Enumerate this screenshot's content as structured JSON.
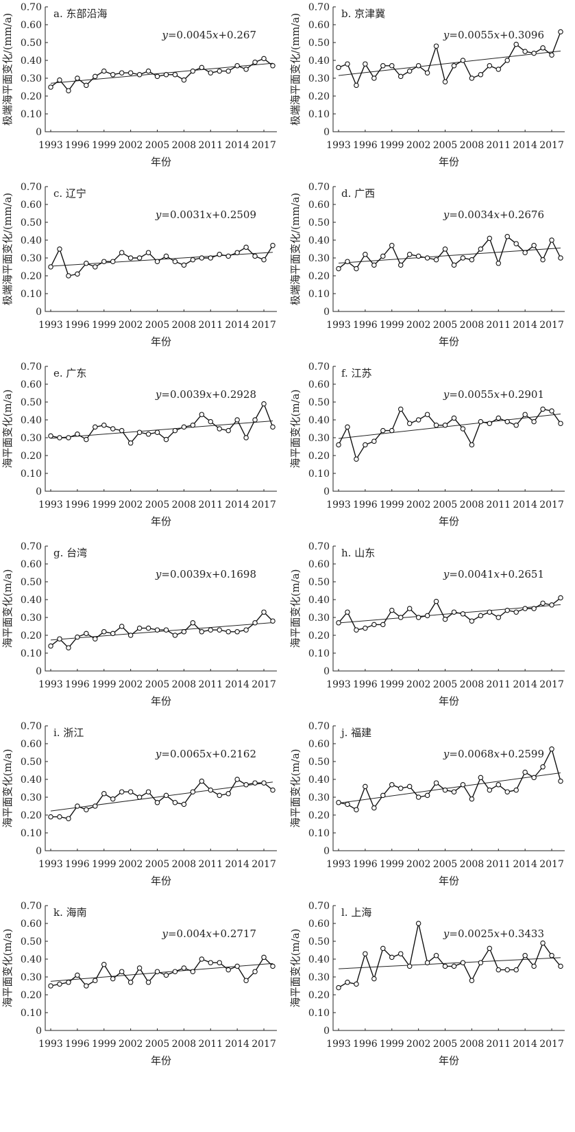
{
  "layout_note": "",
  "chart_data": [
    {
      "type": "line",
      "title": "a. 东部沿海",
      "xlabel": "年份",
      "ylabel": "极端海平面变化/(mm/a)",
      "equation": {
        "pre": "y",
        "mid": "=0.0045",
        "x": "x",
        "post": "+0.267"
      },
      "xticks": [
        "1993",
        "1996",
        "1999",
        "2002",
        "2005",
        "2008",
        "2011",
        "2014",
        "2017"
      ],
      "yticks": [
        "0",
        "0.10",
        "0.20",
        "0.30",
        "0.40",
        "0.50",
        "0.60",
        "0.70"
      ],
      "ylim": [
        0,
        0.7
      ],
      "grid": false,
      "x": [
        1993,
        1994,
        1995,
        1996,
        1997,
        1998,
        1999,
        2000,
        2001,
        2002,
        2003,
        2004,
        2005,
        2006,
        2007,
        2008,
        2009,
        2010,
        2011,
        2012,
        2013,
        2014,
        2015,
        2016,
        2017,
        2018
      ],
      "values": [
        0.25,
        0.29,
        0.23,
        0.3,
        0.26,
        0.31,
        0.34,
        0.32,
        0.33,
        0.33,
        0.32,
        0.34,
        0.31,
        0.32,
        0.32,
        0.29,
        0.34,
        0.36,
        0.33,
        0.34,
        0.34,
        0.37,
        0.35,
        0.39,
        0.41,
        0.37
      ],
      "trend": {
        "slope": 0.0045,
        "intercept": 0.267
      }
    },
    {
      "type": "line",
      "title": "b. 京津冀",
      "xlabel": "年份",
      "ylabel": "极端海平面变化/(mm/a)",
      "equation": {
        "pre": "y",
        "mid": "=0.0055",
        "x": "x",
        "post": "+0.3096"
      },
      "xticks": [
        "1993",
        "1996",
        "1999",
        "2002",
        "2005",
        "2008",
        "2011",
        "2014",
        "2017"
      ],
      "yticks": [
        "0",
        "0.10",
        "0.20",
        "0.30",
        "0.40",
        "0.50",
        "0.60",
        "0.70"
      ],
      "ylim": [
        0,
        0.7
      ],
      "grid": false,
      "x": [
        1993,
        1994,
        1995,
        1996,
        1997,
        1998,
        1999,
        2000,
        2001,
        2002,
        2003,
        2004,
        2005,
        2006,
        2007,
        2008,
        2009,
        2010,
        2011,
        2012,
        2013,
        2014,
        2015,
        2016,
        2017,
        2018
      ],
      "values": [
        0.36,
        0.38,
        0.26,
        0.38,
        0.3,
        0.37,
        0.37,
        0.31,
        0.34,
        0.37,
        0.33,
        0.48,
        0.28,
        0.37,
        0.4,
        0.3,
        0.32,
        0.37,
        0.35,
        0.4,
        0.49,
        0.45,
        0.44,
        0.47,
        0.43,
        0.56
      ],
      "trend": {
        "slope": 0.0055,
        "intercept": 0.3096
      }
    },
    {
      "type": "line",
      "title": "c. 辽宁",
      "xlabel": "年份",
      "ylabel": "极端海平面变化/(mm/a)",
      "equation": {
        "pre": "y",
        "mid": "=0.0031",
        "x": "x",
        "post": "+0.2509"
      },
      "xticks": [
        "1993",
        "1996",
        "1999",
        "2002",
        "2005",
        "2008",
        "2011",
        "2014",
        "2017"
      ],
      "yticks": [
        "0",
        "0.10",
        "0.20",
        "0.30",
        "0.40",
        "0.50",
        "0.60",
        "0.70"
      ],
      "ylim": [
        0,
        0.7
      ],
      "grid": false,
      "x": [
        1993,
        1994,
        1995,
        1996,
        1997,
        1998,
        1999,
        2000,
        2001,
        2002,
        2003,
        2004,
        2005,
        2006,
        2007,
        2008,
        2009,
        2010,
        2011,
        2012,
        2013,
        2014,
        2015,
        2016,
        2017,
        2018
      ],
      "values": [
        0.25,
        0.35,
        0.2,
        0.21,
        0.27,
        0.25,
        0.28,
        0.28,
        0.33,
        0.3,
        0.3,
        0.33,
        0.28,
        0.31,
        0.28,
        0.26,
        0.29,
        0.3,
        0.3,
        0.32,
        0.31,
        0.33,
        0.36,
        0.31,
        0.29,
        0.37
      ],
      "trend": {
        "slope": 0.0031,
        "intercept": 0.2509
      }
    },
    {
      "type": "line",
      "title": "d. 广西",
      "xlabel": "年份",
      "ylabel": "极端海平面变化/(mm/a)",
      "equation": {
        "pre": "y",
        "mid": "=0.0034",
        "x": "x",
        "post": "+0.2676"
      },
      "xticks": [
        "1993",
        "1996",
        "1999",
        "2002",
        "2005",
        "2008",
        "2011",
        "2014",
        "2017"
      ],
      "yticks": [
        "0",
        "0.10",
        "0.20",
        "0.30",
        "0.40",
        "0.50",
        "0.60",
        "0.70"
      ],
      "ylim": [
        0,
        0.7
      ],
      "grid": false,
      "x": [
        1993,
        1994,
        1995,
        1996,
        1997,
        1998,
        1999,
        2000,
        2001,
        2002,
        2003,
        2004,
        2005,
        2006,
        2007,
        2008,
        2009,
        2010,
        2011,
        2012,
        2013,
        2014,
        2015,
        2016,
        2017,
        2018
      ],
      "values": [
        0.24,
        0.28,
        0.24,
        0.32,
        0.26,
        0.31,
        0.37,
        0.26,
        0.32,
        0.31,
        0.3,
        0.29,
        0.35,
        0.26,
        0.3,
        0.29,
        0.35,
        0.41,
        0.27,
        0.42,
        0.38,
        0.33,
        0.37,
        0.29,
        0.4,
        0.3
      ],
      "trend": {
        "slope": 0.0034,
        "intercept": 0.2676
      }
    },
    {
      "type": "line",
      "title": "e. 广东",
      "xlabel": "年份",
      "ylabel": "海平面变化(m/a)",
      "equation": {
        "pre": "y",
        "mid": "=0.0039",
        "x": "x",
        "post": "+0.2928"
      },
      "xticks": [
        "1993",
        "1996",
        "1999",
        "2002",
        "2005",
        "2008",
        "2011",
        "2014",
        "2017"
      ],
      "yticks": [
        "0",
        "0.10",
        "0.20",
        "0.30",
        "0.40",
        "0.50",
        "0.60",
        "0.70"
      ],
      "ylim": [
        0,
        0.7
      ],
      "grid": false,
      "x": [
        1993,
        1994,
        1995,
        1996,
        1997,
        1998,
        1999,
        2000,
        2001,
        2002,
        2003,
        2004,
        2005,
        2006,
        2007,
        2008,
        2009,
        2010,
        2011,
        2012,
        2013,
        2014,
        2015,
        2016,
        2017,
        2018
      ],
      "values": [
        0.31,
        0.3,
        0.3,
        0.32,
        0.29,
        0.36,
        0.37,
        0.35,
        0.34,
        0.27,
        0.33,
        0.32,
        0.33,
        0.29,
        0.34,
        0.36,
        0.37,
        0.43,
        0.39,
        0.35,
        0.34,
        0.4,
        0.3,
        0.4,
        0.49,
        0.36
      ],
      "trend": {
        "slope": 0.0039,
        "intercept": 0.2928
      }
    },
    {
      "type": "line",
      "title": "f. 江苏",
      "xlabel": "年份",
      "ylabel": "海平面变化(m/a)",
      "equation": {
        "pre": "y",
        "mid": "=0.0055",
        "x": "x",
        "post": "+0.2901"
      },
      "xticks": [
        "1993",
        "1996",
        "1999",
        "2002",
        "2005",
        "2008",
        "2011",
        "2014",
        "2017"
      ],
      "yticks": [
        "0",
        "0.10",
        "0.20",
        "0.30",
        "0.40",
        "0.50",
        "0.60",
        "0.70"
      ],
      "ylim": [
        0,
        0.7
      ],
      "grid": false,
      "x": [
        1993,
        1994,
        1995,
        1996,
        1997,
        1998,
        1999,
        2000,
        2001,
        2002,
        2003,
        2004,
        2005,
        2006,
        2007,
        2008,
        2009,
        2010,
        2011,
        2012,
        2013,
        2014,
        2015,
        2016,
        2017,
        2018
      ],
      "values": [
        0.26,
        0.36,
        0.18,
        0.26,
        0.28,
        0.34,
        0.34,
        0.46,
        0.38,
        0.4,
        0.43,
        0.37,
        0.37,
        0.41,
        0.35,
        0.26,
        0.39,
        0.38,
        0.41,
        0.39,
        0.37,
        0.43,
        0.39,
        0.46,
        0.45,
        0.38
      ],
      "trend": {
        "slope": 0.0055,
        "intercept": 0.2901
      }
    },
    {
      "type": "line",
      "title": "g. 台湾",
      "xlabel": "年份",
      "ylabel": "海平面变化(m/a)",
      "equation": {
        "pre": "y",
        "mid": "=0.0039",
        "x": "x",
        "post": "+0.1698"
      },
      "xticks": [
        "1993",
        "1996",
        "1999",
        "2002",
        "2005",
        "2008",
        "2011",
        "2014",
        "2017"
      ],
      "yticks": [
        "0",
        "0.10",
        "0.20",
        "0.30",
        "0.40",
        "0.50",
        "0.60",
        "0.70"
      ],
      "ylim": [
        0,
        0.7
      ],
      "grid": false,
      "x": [
        1993,
        1994,
        1995,
        1996,
        1997,
        1998,
        1999,
        2000,
        2001,
        2002,
        2003,
        2004,
        2005,
        2006,
        2007,
        2008,
        2009,
        2010,
        2011,
        2012,
        2013,
        2014,
        2015,
        2016,
        2017,
        2018
      ],
      "values": [
        0.14,
        0.18,
        0.13,
        0.19,
        0.21,
        0.18,
        0.22,
        0.21,
        0.25,
        0.2,
        0.24,
        0.24,
        0.23,
        0.23,
        0.2,
        0.22,
        0.27,
        0.22,
        0.23,
        0.23,
        0.22,
        0.22,
        0.23,
        0.27,
        0.33,
        0.28
      ],
      "trend": {
        "slope": 0.0039,
        "intercept": 0.1698
      }
    },
    {
      "type": "line",
      "title": "h. 山东",
      "xlabel": "年份",
      "ylabel": "海平面变化(m/a)",
      "equation": {
        "pre": "y",
        "mid": "=0.0041",
        "x": "x",
        "post": "+0.2651"
      },
      "xticks": [
        "1993",
        "1996",
        "1999",
        "2002",
        "2005",
        "2008",
        "2011",
        "2014",
        "2017"
      ],
      "yticks": [
        "0",
        "0.10",
        "0.20",
        "0.30",
        "0.40",
        "0.50",
        "0.60",
        "0.70"
      ],
      "ylim": [
        0,
        0.7
      ],
      "grid": false,
      "x": [
        1993,
        1994,
        1995,
        1996,
        1997,
        1998,
        1999,
        2000,
        2001,
        2002,
        2003,
        2004,
        2005,
        2006,
        2007,
        2008,
        2009,
        2010,
        2011,
        2012,
        2013,
        2014,
        2015,
        2016,
        2017,
        2018
      ],
      "values": [
        0.27,
        0.33,
        0.23,
        0.24,
        0.26,
        0.26,
        0.34,
        0.3,
        0.35,
        0.3,
        0.31,
        0.39,
        0.29,
        0.33,
        0.32,
        0.28,
        0.31,
        0.33,
        0.3,
        0.34,
        0.33,
        0.35,
        0.35,
        0.38,
        0.37,
        0.41
      ],
      "trend": {
        "slope": 0.0041,
        "intercept": 0.2651
      }
    },
    {
      "type": "line",
      "title": "i. 浙江",
      "xlabel": "年份",
      "ylabel": "海平面变化(m/a)",
      "equation": {
        "pre": "y",
        "mid": "=0.0065",
        "x": "x",
        "post": "+0.2162"
      },
      "xticks": [
        "1993",
        "1996",
        "1999",
        "2002",
        "2005",
        "2008",
        "2011",
        "2014",
        "2017"
      ],
      "yticks": [
        "0",
        "0.10",
        "0.20",
        "0.30",
        "0.40",
        "0.50",
        "0.60",
        "0.70"
      ],
      "ylim": [
        0,
        0.7
      ],
      "grid": false,
      "x": [
        1993,
        1994,
        1995,
        1996,
        1997,
        1998,
        1999,
        2000,
        2001,
        2002,
        2003,
        2004,
        2005,
        2006,
        2007,
        2008,
        2009,
        2010,
        2011,
        2012,
        2013,
        2014,
        2015,
        2016,
        2017,
        2018
      ],
      "values": [
        0.19,
        0.19,
        0.18,
        0.25,
        0.23,
        0.25,
        0.32,
        0.29,
        0.33,
        0.33,
        0.3,
        0.33,
        0.27,
        0.31,
        0.27,
        0.26,
        0.33,
        0.39,
        0.34,
        0.31,
        0.32,
        0.4,
        0.37,
        0.38,
        0.38,
        0.34
      ],
      "trend": {
        "slope": 0.0065,
        "intercept": 0.2162
      }
    },
    {
      "type": "line",
      "title": "j. 福建",
      "xlabel": "年份",
      "ylabel": "海平面变化(m/a)",
      "equation": {
        "pre": "y",
        "mid": "=0.0068",
        "x": "x",
        "post": "+0.2599"
      },
      "xticks": [
        "1993",
        "1996",
        "1999",
        "2002",
        "2005",
        "2008",
        "2011",
        "2014",
        "2017"
      ],
      "yticks": [
        "0",
        "0.10",
        "0.20",
        "0.30",
        "0.40",
        "0.50",
        "0.60",
        "0.70"
      ],
      "ylim": [
        0,
        0.7
      ],
      "grid": false,
      "x": [
        1993,
        1994,
        1995,
        1996,
        1997,
        1998,
        1999,
        2000,
        2001,
        2002,
        2003,
        2004,
        2005,
        2006,
        2007,
        2008,
        2009,
        2010,
        2011,
        2012,
        2013,
        2014,
        2015,
        2016,
        2017,
        2018
      ],
      "values": [
        0.27,
        0.26,
        0.23,
        0.36,
        0.24,
        0.31,
        0.37,
        0.35,
        0.36,
        0.3,
        0.31,
        0.38,
        0.34,
        0.33,
        0.37,
        0.29,
        0.41,
        0.34,
        0.37,
        0.33,
        0.34,
        0.44,
        0.41,
        0.47,
        0.57,
        0.39
      ],
      "trend": {
        "slope": 0.0068,
        "intercept": 0.2599
      }
    },
    {
      "type": "line",
      "title": "k. 海南",
      "xlabel": "年份",
      "ylabel": "海平面变化(m/a)",
      "equation": {
        "pre": "y",
        "mid": "=0.004",
        "x": "x",
        "post": "+0.2717"
      },
      "xticks": [
        "1993",
        "1996",
        "1999",
        "2002",
        "2005",
        "2008",
        "2011",
        "2014",
        "2017"
      ],
      "yticks": [
        "0",
        "0.10",
        "0.20",
        "0.30",
        "0.40",
        "0.50",
        "0.60",
        "0.70"
      ],
      "ylim": [
        0,
        0.7
      ],
      "grid": false,
      "x": [
        1993,
        1994,
        1995,
        1996,
        1997,
        1998,
        1999,
        2000,
        2001,
        2002,
        2003,
        2004,
        2005,
        2006,
        2007,
        2008,
        2009,
        2010,
        2011,
        2012,
        2013,
        2014,
        2015,
        2016,
        2017,
        2018
      ],
      "values": [
        0.25,
        0.26,
        0.27,
        0.31,
        0.25,
        0.28,
        0.37,
        0.29,
        0.33,
        0.27,
        0.35,
        0.27,
        0.33,
        0.31,
        0.33,
        0.35,
        0.33,
        0.4,
        0.38,
        0.38,
        0.34,
        0.36,
        0.28,
        0.33,
        0.41,
        0.36
      ],
      "trend": {
        "slope": 0.004,
        "intercept": 0.2717
      }
    },
    {
      "type": "line",
      "title": "l. 上海",
      "xlabel": "年份",
      "ylabel": "海平面变化(m/a)",
      "equation": {
        "pre": "y",
        "mid": "=0.0025",
        "x": "x",
        "post": "+0.3433"
      },
      "xticks": [
        "1993",
        "1996",
        "1999",
        "2002",
        "2005",
        "2008",
        "2011",
        "2014",
        "2017"
      ],
      "yticks": [
        "0",
        "0.10",
        "0.20",
        "0.30",
        "0.40",
        "0.50",
        "0.60",
        "0.70"
      ],
      "ylim": [
        0,
        0.7
      ],
      "grid": false,
      "x": [
        1993,
        1994,
        1995,
        1996,
        1997,
        1998,
        1999,
        2000,
        2001,
        2002,
        2003,
        2004,
        2005,
        2006,
        2007,
        2008,
        2009,
        2010,
        2011,
        2012,
        2013,
        2014,
        2015,
        2016,
        2017,
        2018
      ],
      "values": [
        0.24,
        0.27,
        0.26,
        0.43,
        0.29,
        0.46,
        0.41,
        0.43,
        0.36,
        0.6,
        0.38,
        0.42,
        0.36,
        0.36,
        0.38,
        0.28,
        0.38,
        0.46,
        0.34,
        0.34,
        0.34,
        0.42,
        0.36,
        0.49,
        0.42,
        0.36
      ],
      "trend": {
        "slope": 0.0025,
        "intercept": 0.3433
      }
    }
  ]
}
